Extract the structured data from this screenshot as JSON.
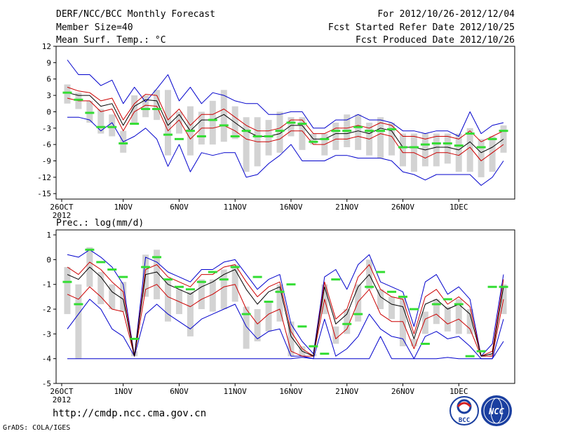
{
  "header": {
    "title": "DERF/NCC/BCC Monthly Forecast",
    "member_size": "Member Size=40",
    "variable": "Mean Surf. Temp.: °C",
    "period": "For 2012/10/26-2012/12/04",
    "started": "Fcst Started Refer Date 2012/10/25",
    "produced": "Fcst Produced Date 2012/10/26"
  },
  "footer": {
    "url": "http://cmdp.ncc.cma.gov.cn",
    "credit": "GrADS: COLA/IGES",
    "logo_bcc": "BCC",
    "logo_ncc": "NCC"
  },
  "colors": {
    "envelope": "#0000cc",
    "spread": "#cc0000",
    "mean": "#000000",
    "box": "#d3d3d3",
    "marker": "#33dd33"
  },
  "chart_data": [
    {
      "type": "line",
      "id": "temperature",
      "title": "Mean Surf. Temp.: °C",
      "ylabel": "°C",
      "ylim": [
        -16,
        12
      ],
      "yticks": [
        12,
        9,
        6,
        3,
        0,
        -3,
        -6,
        -9,
        -12,
        -15
      ],
      "xlim": [
        0,
        41
      ],
      "xticks": [
        {
          "x": 0.5,
          "label": "26OCT"
        },
        {
          "x": 6,
          "label": "1NOV"
        },
        {
          "x": 11,
          "label": "6NOV"
        },
        {
          "x": 16,
          "label": "11NOV"
        },
        {
          "x": 21,
          "label": "16NOV"
        },
        {
          "x": 26,
          "label": "21NOV"
        },
        {
          "x": 31,
          "label": "26NOV"
        },
        {
          "x": 36,
          "label": "1DEC"
        }
      ],
      "xsublabel": "2012",
      "days": [
        1,
        2,
        3,
        4,
        5,
        6,
        7,
        8,
        9,
        10,
        11,
        12,
        13,
        14,
        15,
        16,
        17,
        18,
        19,
        20,
        21,
        22,
        23,
        24,
        25,
        26,
        27,
        28,
        29,
        30,
        31,
        32,
        33,
        34,
        35,
        36,
        37,
        38,
        39,
        40
      ],
      "series": [
        {
          "name": "max",
          "values": [
            9.5,
            6.8,
            6.8,
            4.8,
            5.8,
            1.5,
            4.5,
            1.8,
            4.2,
            6.8,
            2.0,
            4.5,
            1.5,
            3.5,
            3.0,
            2.0,
            1.5,
            1.5,
            -0.5,
            -0.5,
            0.0,
            0.0,
            -3.0,
            -3.0,
            -1.5,
            -1.5,
            -0.5,
            -1.5,
            -1.5,
            -2.0,
            -3.5,
            -3.5,
            -4.0,
            -3.5,
            -3.5,
            -4.5,
            0.0,
            -4.0,
            -2.5,
            -2.0
          ]
        },
        {
          "name": "upper",
          "values": [
            4.5,
            3.8,
            3.5,
            2.0,
            2.5,
            -1.5,
            1.5,
            3.2,
            3.0,
            -1.5,
            0.5,
            -2.5,
            -0.5,
            -0.5,
            0.5,
            -1.0,
            -2.5,
            -3.5,
            -3.5,
            -3.0,
            -1.5,
            -1.5,
            -4.0,
            -4.0,
            -3.0,
            -3.0,
            -2.5,
            -3.0,
            -2.0,
            -2.5,
            -4.5,
            -4.5,
            -5.0,
            -4.5,
            -4.5,
            -5.0,
            -3.5,
            -5.5,
            -4.5,
            -3.5
          ]
        },
        {
          "name": "mean",
          "values": [
            3.5,
            3.0,
            3.0,
            1.0,
            1.5,
            -2.5,
            1.0,
            2.2,
            2.0,
            -2.5,
            -0.5,
            -3.5,
            -1.5,
            -1.5,
            -0.5,
            -2.0,
            -3.5,
            -4.5,
            -4.5,
            -4.0,
            -2.5,
            -2.5,
            -5.0,
            -5.0,
            -4.0,
            -4.0,
            -3.5,
            -4.0,
            -3.0,
            -3.5,
            -6.5,
            -6.5,
            -7.0,
            -6.5,
            -6.5,
            -7.0,
            -5.5,
            -7.5,
            -6.5,
            -5.0
          ]
        },
        {
          "name": "lower",
          "values": [
            2.5,
            2.0,
            2.0,
            0.0,
            0.5,
            -3.5,
            0.0,
            1.2,
            1.0,
            -3.5,
            -1.5,
            -5.0,
            -3.0,
            -3.0,
            -2.5,
            -3.5,
            -5.0,
            -5.5,
            -5.5,
            -5.0,
            -3.5,
            -3.5,
            -6.0,
            -6.0,
            -5.0,
            -5.0,
            -4.5,
            -5.0,
            -4.0,
            -4.5,
            -7.5,
            -7.5,
            -8.5,
            -7.5,
            -7.5,
            -8.0,
            -6.5,
            -9.0,
            -7.5,
            -6.0
          ]
        },
        {
          "name": "min",
          "values": [
            -1.0,
            -1.0,
            -1.5,
            -3.5,
            -2.0,
            -5.5,
            -4.5,
            -3.0,
            -5.0,
            -10.0,
            -6.0,
            -11.0,
            -7.5,
            -8.0,
            -7.5,
            -7.5,
            -12.0,
            -11.5,
            -9.5,
            -8.0,
            -6.0,
            -9.0,
            -9.0,
            -9.0,
            -8.0,
            -8.0,
            -8.5,
            -8.5,
            -8.5,
            -9.0,
            -11.0,
            -11.5,
            -12.5,
            -11.5,
            -11.5,
            -11.5,
            -11.5,
            -13.5,
            -12.0,
            -9.0
          ]
        },
        {
          "name": "box_top",
          "values": [
            5.0,
            3.5,
            2.0,
            0.5,
            -0.5,
            -3.5,
            3.0,
            3.0,
            4.0,
            4.0,
            0.0,
            1.0,
            0.0,
            2.0,
            4.0,
            1.0,
            -1.0,
            -1.0,
            -1.5,
            0.0,
            -1.0,
            -1.0,
            -4.0,
            -4.0,
            -2.0,
            -0.5,
            -0.5,
            -2.0,
            -1.0,
            -2.0,
            -4.0,
            -4.0,
            -4.0,
            -4.0,
            -4.0,
            -4.0,
            -3.0,
            -5.0,
            -4.5,
            -2.5
          ]
        },
        {
          "name": "box_bottom",
          "values": [
            1.5,
            0.5,
            -2.0,
            -4.0,
            -4.5,
            -7.5,
            -2.0,
            -1.0,
            -1.5,
            -8.0,
            -4.0,
            -8.0,
            -6.0,
            -6.0,
            -5.5,
            -5.0,
            -11.0,
            -10.0,
            -8.0,
            -7.5,
            -4.5,
            -7.0,
            -6.0,
            -8.0,
            -7.0,
            -6.5,
            -7.0,
            -8.0,
            -8.5,
            -8.0,
            -10.0,
            -11.0,
            -10.0,
            -10.0,
            -9.5,
            -11.0,
            -11.0,
            -12.0,
            -11.0,
            -7.5
          ]
        },
        {
          "name": "marker",
          "values": [
            3.5,
            2.2,
            -0.2,
            -2.8,
            -2.8,
            -5.8,
            -2.2,
            0.5,
            0.5,
            -4.2,
            -5.0,
            -3.5,
            -4.5,
            -1.5,
            -2.5,
            -4.5,
            -3.5,
            -4.5,
            -4.5,
            -3.5,
            -2.0,
            -2.2,
            -5.5,
            -5.0,
            -3.5,
            -3.5,
            -2.8,
            -3.5,
            -3.5,
            -3.2,
            -6.5,
            -6.5,
            -6.0,
            -5.8,
            -5.8,
            -6.2,
            -4.0,
            -6.5,
            -5.0,
            -3.5
          ]
        }
      ]
    },
    {
      "type": "line",
      "id": "precipitation",
      "title": "Prec.: log(mm/d)",
      "ylabel": "log(mm/d)",
      "ylim": [
        -5,
        1.2
      ],
      "yticks": [
        1,
        0,
        -1,
        -2,
        -3,
        -4,
        -5
      ],
      "xlim": [
        0,
        41
      ],
      "xticks": [
        {
          "x": 0.5,
          "label": "26OCT"
        },
        {
          "x": 6,
          "label": "1NOV"
        },
        {
          "x": 11,
          "label": "6NOV"
        },
        {
          "x": 16,
          "label": "11NOV"
        },
        {
          "x": 21,
          "label": "16NOV"
        },
        {
          "x": 26,
          "label": "21NOV"
        },
        {
          "x": 31,
          "label": "26NOV"
        },
        {
          "x": 36,
          "label": "1DEC"
        }
      ],
      "xsublabel": "2012",
      "days": [
        1,
        2,
        3,
        4,
        5,
        6,
        7,
        8,
        9,
        10,
        11,
        12,
        13,
        14,
        15,
        16,
        17,
        18,
        19,
        20,
        21,
        22,
        23,
        24,
        25,
        26,
        27,
        28,
        29,
        30,
        31,
        32,
        33,
        34,
        35,
        36,
        37,
        38,
        39,
        40
      ],
      "series": [
        {
          "name": "max",
          "values": [
            0.2,
            0.1,
            0.4,
            0.1,
            -0.3,
            -1.0,
            -3.9,
            0.1,
            -0.1,
            -0.5,
            -0.7,
            -0.9,
            -0.4,
            -0.4,
            -0.1,
            0.0,
            -0.6,
            -1.2,
            -0.8,
            -0.6,
            -2.6,
            -3.3,
            -3.8,
            -0.7,
            -0.4,
            -1.2,
            -0.2,
            0.2,
            -0.9,
            -1.1,
            -1.3,
            -2.7,
            -0.9,
            -0.6,
            -1.4,
            -1.1,
            -1.6,
            -3.9,
            -3.4,
            -0.6
          ]
        },
        {
          "name": "upper",
          "values": [
            -0.3,
            -0.6,
            -0.1,
            -0.4,
            -0.9,
            -1.3,
            -3.9,
            -0.4,
            -0.2,
            -0.7,
            -0.9,
            -1.1,
            -0.6,
            -0.6,
            -0.3,
            -0.2,
            -0.9,
            -1.5,
            -1.1,
            -0.9,
            -2.9,
            -3.6,
            -3.9,
            -0.9,
            -2.4,
            -2.0,
            -0.7,
            -0.2,
            -1.2,
            -1.5,
            -1.6,
            -3.0,
            -1.5,
            -1.2,
            -1.8,
            -1.5,
            -1.9,
            -3.9,
            -3.7,
            -0.8
          ]
        },
        {
          "name": "mean",
          "values": [
            -0.6,
            -0.8,
            -0.3,
            -0.7,
            -1.3,
            -1.6,
            -3.9,
            -0.6,
            -0.5,
            -1.0,
            -1.2,
            -1.4,
            -1.1,
            -0.9,
            -0.6,
            -0.4,
            -1.2,
            -1.8,
            -1.3,
            -1.1,
            -3.1,
            -3.7,
            -3.9,
            -1.1,
            -2.6,
            -2.2,
            -1.1,
            -0.6,
            -1.5,
            -1.8,
            -1.9,
            -3.2,
            -1.8,
            -1.6,
            -2.0,
            -1.8,
            -2.2,
            -3.9,
            -3.8,
            -1.1
          ]
        },
        {
          "name": "lower",
          "values": [
            -1.4,
            -1.6,
            -1.1,
            -1.5,
            -2.0,
            -2.1,
            -3.9,
            -1.2,
            -1.0,
            -1.5,
            -1.7,
            -1.9,
            -1.6,
            -1.4,
            -1.1,
            -1.0,
            -2.0,
            -2.6,
            -2.2,
            -2.0,
            -3.7,
            -3.9,
            -3.9,
            -1.6,
            -3.2,
            -2.8,
            -1.7,
            -1.2,
            -2.2,
            -2.5,
            -2.5,
            -3.6,
            -2.4,
            -2.2,
            -2.6,
            -2.4,
            -2.8,
            -3.9,
            -3.9,
            -1.6
          ]
        },
        {
          "name": "min",
          "values": [
            -2.8,
            -2.2,
            -1.6,
            -2.0,
            -2.8,
            -3.1,
            -3.9,
            -2.2,
            -1.8,
            -2.2,
            -2.5,
            -2.8,
            -2.4,
            -2.2,
            -2.0,
            -1.8,
            -2.7,
            -3.2,
            -2.9,
            -2.8,
            -3.9,
            -3.9,
            -4.0,
            -2.4,
            -3.9,
            -3.6,
            -3.1,
            -2.2,
            -2.8,
            -3.1,
            -3.2,
            -4.0,
            -3.1,
            -2.9,
            -3.2,
            -3.1,
            -3.5,
            -4.0,
            -4.0,
            -2.4
          ]
        },
        {
          "name": "floor",
          "values": [
            -4.0,
            -4.0,
            -4.0,
            -4.0,
            -4.0,
            -4.0,
            -4.0,
            -4.0,
            -4.0,
            -4.0,
            -4.0,
            -4.0,
            -4.0,
            -4.0,
            -4.0,
            -4.0,
            -4.0,
            -4.0,
            -4.0,
            -4.0,
            -4.0,
            -3.95,
            -4.0,
            -4.0,
            -4.0,
            -4.0,
            -4.0,
            -4.0,
            -3.1,
            -4.0,
            -4.0,
            -4.0,
            -4.0,
            -4.0,
            -3.95,
            -4.0,
            -4.0,
            -4.0,
            -4.0,
            -3.3
          ]
        },
        {
          "name": "box_top",
          "values": [
            -0.3,
            -1.0,
            0.5,
            -0.5,
            -1.0,
            -0.9,
            -3.7,
            0.2,
            0.4,
            -0.8,
            -1.2,
            -1.3,
            -0.8,
            -0.8,
            -0.4,
            -0.2,
            -1.9,
            -2.0,
            -1.7,
            -1.0,
            -2.5,
            -3.5,
            -3.8,
            -1.0,
            -2.7,
            -2.0,
            -1.0,
            0.0,
            -1.2,
            -1.5,
            -1.5,
            -3.2,
            -2.1,
            -1.6,
            -1.9,
            -1.6,
            -2.0,
            -3.9,
            -3.8,
            -1.0
          ]
        },
        {
          "name": "box_bottom",
          "values": [
            -2.2,
            -4.0,
            -1.1,
            -1.8,
            -2.0,
            -2.1,
            -3.9,
            -1.5,
            -1.6,
            -2.5,
            -2.2,
            -3.1,
            -2.0,
            -2.1,
            -2.0,
            -1.7,
            -3.6,
            -3.3,
            -2.9,
            -2.5,
            -3.9,
            -3.9,
            -3.9,
            -2.2,
            -3.4,
            -3.0,
            -2.5,
            -1.2,
            -2.0,
            -2.4,
            -3.5,
            -3.5,
            -3.0,
            -2.6,
            -2.9,
            -3.0,
            -3.0,
            -3.9,
            -3.9,
            -2.2
          ]
        },
        {
          "name": "marker",
          "values": [
            -0.9,
            -1.8,
            0.4,
            -0.1,
            -0.4,
            -0.7,
            -3.2,
            -0.3,
            0.1,
            -0.8,
            -1.1,
            -1.2,
            -0.9,
            -0.5,
            -0.8,
            -0.3,
            -2.2,
            -0.7,
            -1.7,
            -1.3,
            -1.0,
            -2.7,
            -3.5,
            -3.8,
            -0.8,
            -2.6,
            -2.2,
            -1.1,
            -0.5,
            -1.3,
            -1.5,
            -2.0,
            -3.4,
            -1.8,
            -1.6,
            -1.8,
            -3.9,
            -3.7,
            -1.1,
            -1.1
          ]
        }
      ]
    }
  ]
}
